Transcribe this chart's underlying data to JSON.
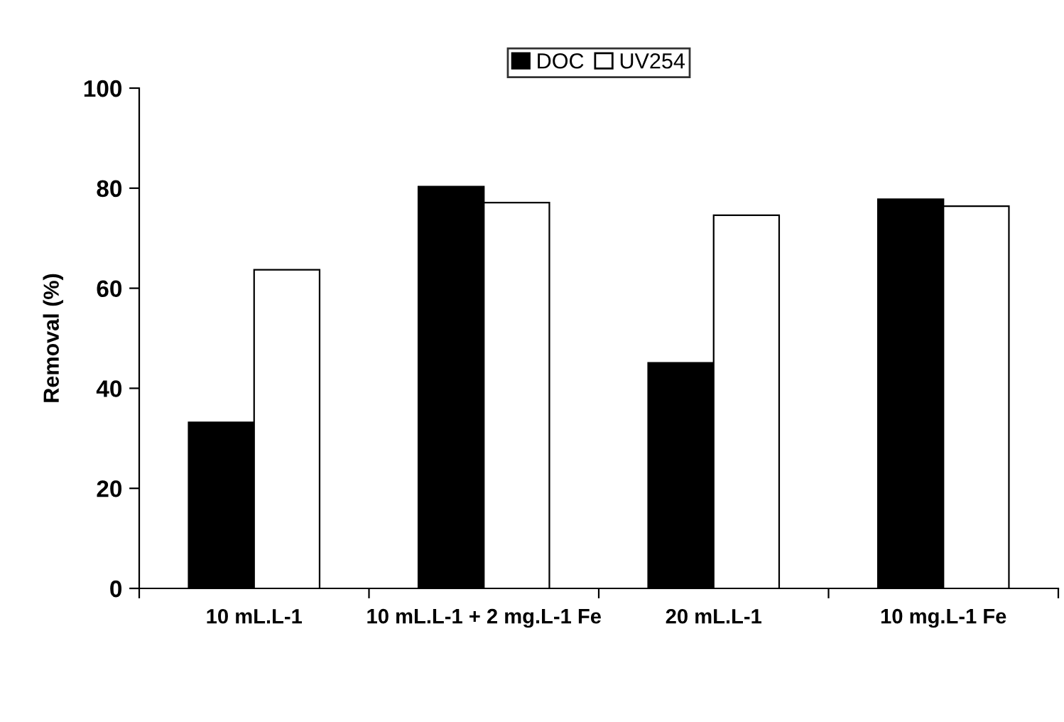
{
  "chart_data": {
    "type": "bar",
    "ylabel": "Removal (%)",
    "categories": [
      "10 mL.L-1",
      "10 mL.L-1 + 2 mg.L-1 Fe",
      "20 mL.L-1",
      "10 mg.L-1 Fe"
    ],
    "series": [
      {
        "name": "DOC",
        "color": "#000000",
        "values": [
          33.2,
          80.3,
          45.1,
          77.8
        ]
      },
      {
        "name": "UV254",
        "color": "#ffffff",
        "values": [
          63.7,
          77.1,
          74.6,
          76.4
        ]
      }
    ],
    "ylim": [
      0,
      100
    ],
    "yticks": [
      0,
      20,
      40,
      60,
      80,
      100
    ],
    "grid": false,
    "legend": "top"
  }
}
